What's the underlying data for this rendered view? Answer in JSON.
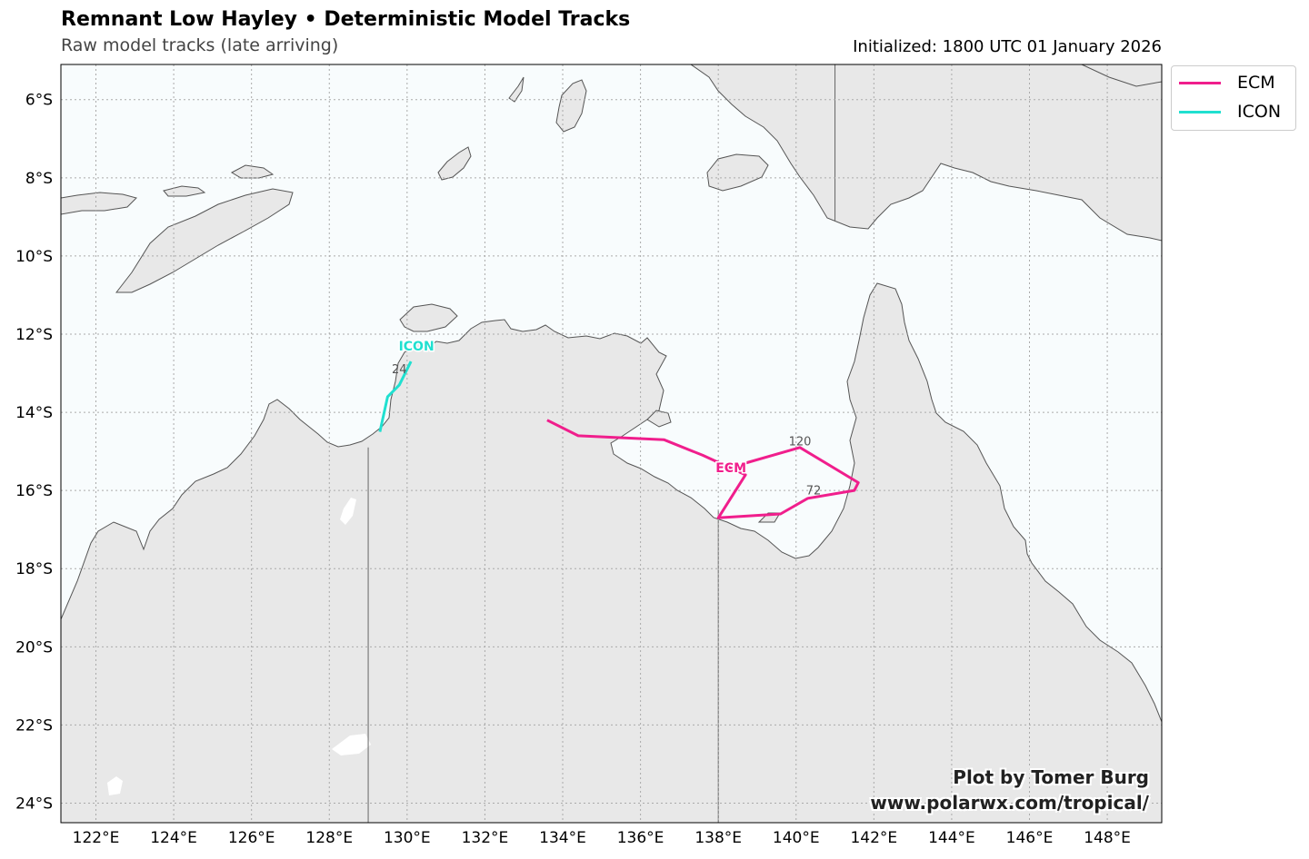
{
  "header": {
    "title": "Remnant Low Hayley • Deterministic Model Tracks",
    "subtitle": "Raw model tracks (late arriving)",
    "init": "Initialized: 1800 UTC 01 January 2026"
  },
  "map": {
    "extent": {
      "lon_min": 121.1,
      "lon_max": 149.4,
      "lat_min": -24.5,
      "lat_max": -5.1
    },
    "lon_ticks": [
      122,
      124,
      126,
      128,
      130,
      132,
      134,
      136,
      138,
      140,
      142,
      144,
      146,
      148
    ],
    "lon_labels": [
      "122°E",
      "124°E",
      "126°E",
      "128°E",
      "130°E",
      "132°E",
      "134°E",
      "136°E",
      "138°E",
      "140°E",
      "142°E",
      "144°E",
      "146°E",
      "148°E"
    ],
    "lat_ticks": [
      -6,
      -8,
      -10,
      -12,
      -14,
      -16,
      -18,
      -20,
      -22,
      -24
    ],
    "lat_labels": [
      "6°S",
      "8°S",
      "10°S",
      "12°S",
      "14°S",
      "16°S",
      "18°S",
      "20°S",
      "22°S",
      "24°S"
    ],
    "colors": {
      "ocean": "#f8fcfd",
      "land": "#e8e8e8",
      "coast": "#555555",
      "grid": "#aaaaaa",
      "border": "#666666"
    },
    "borders": [
      [
        [
          129.0,
          -14.9
        ],
        [
          129.0,
          -24.5
        ]
      ],
      [
        [
          138.0,
          -16.5
        ],
        [
          138.0,
          -24.5
        ]
      ],
      [
        [
          141.0,
          -5.1
        ],
        [
          141.0,
          -9.1
        ]
      ]
    ]
  },
  "tracks": [
    {
      "name": "ECM",
      "color": "#f01e8c",
      "points": [
        [
          133.6,
          -14.2
        ],
        [
          134.4,
          -14.6
        ],
        [
          136.6,
          -14.7
        ],
        [
          137.6,
          -15.1
        ],
        [
          138.7,
          -15.6
        ],
        [
          138.0,
          -16.7
        ],
        [
          139.6,
          -16.6
        ],
        [
          140.3,
          -16.2
        ],
        [
          141.5,
          -16.0
        ],
        [
          141.6,
          -15.8
        ],
        [
          140.1,
          -14.9
        ],
        [
          138.7,
          -15.3
        ]
      ],
      "start_label": "ECM",
      "hour_labels": [
        {
          "text": "120",
          "lon": 140.1,
          "lat": -14.85
        },
        {
          "text": "72",
          "lon": 140.45,
          "lat": -16.1
        }
      ]
    },
    {
      "name": "ICON",
      "color": "#20e0d0",
      "points": [
        [
          129.3,
          -14.5
        ],
        [
          129.5,
          -13.6
        ],
        [
          129.8,
          -13.3
        ],
        [
          130.1,
          -12.7
        ]
      ],
      "start_label": "ICON",
      "hour_labels": [
        {
          "text": "24",
          "lon": 129.8,
          "lat": -13.0
        }
      ]
    }
  ],
  "legend": {
    "items": [
      "ECM",
      "ICON"
    ]
  },
  "credit": {
    "line1": "Plot by Tomer Burg",
    "line2": "www.polarwx.com/tropical/"
  }
}
